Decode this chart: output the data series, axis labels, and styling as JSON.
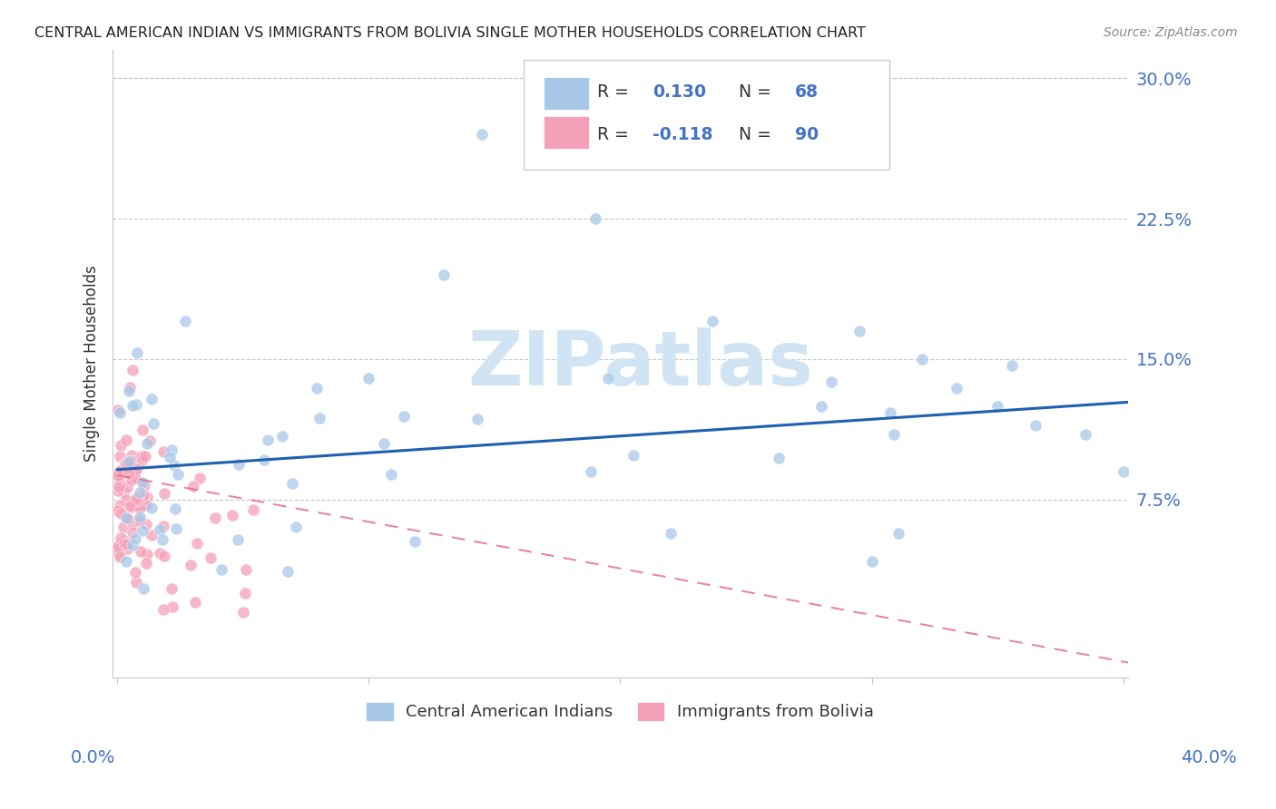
{
  "title": "CENTRAL AMERICAN INDIAN VS IMMIGRANTS FROM BOLIVIA SINGLE MOTHER HOUSEHOLDS CORRELATION CHART",
  "source": "Source: ZipAtlas.com",
  "ylabel": "Single Mother Households",
  "yticks": [
    "7.5%",
    "15.0%",
    "22.5%",
    "30.0%"
  ],
  "ytick_vals": [
    0.075,
    0.15,
    0.225,
    0.3
  ],
  "xlim": [
    -0.002,
    0.402
  ],
  "ylim": [
    -0.02,
    0.315
  ],
  "legend_xlabel": "Central American Indians",
  "legend_xlabel2": "Immigrants from Bolivia",
  "blue_color": "#a8c8e8",
  "pink_color": "#f4a0b8",
  "blue_line_color": "#2060b0",
  "pink_line_color": "#e06080",
  "watermark_color": "#d0e4f4",
  "text_dark": "#333333",
  "text_blue": "#4472c4",
  "grid_color": "#c8c8c8",
  "spine_color": "#c8c8c8",
  "blue_R_val": "0.130",
  "blue_N_val": "68",
  "pink_R_val": "-0.118",
  "pink_N_val": "90",
  "blue_trend_x0": 0.0,
  "blue_trend_y0": 0.091,
  "blue_trend_x1": 0.402,
  "blue_trend_y1": 0.127,
  "pink_trend_x0": 0.0,
  "pink_trend_y0": 0.088,
  "pink_trend_x1": 0.402,
  "pink_trend_y1": -0.012
}
